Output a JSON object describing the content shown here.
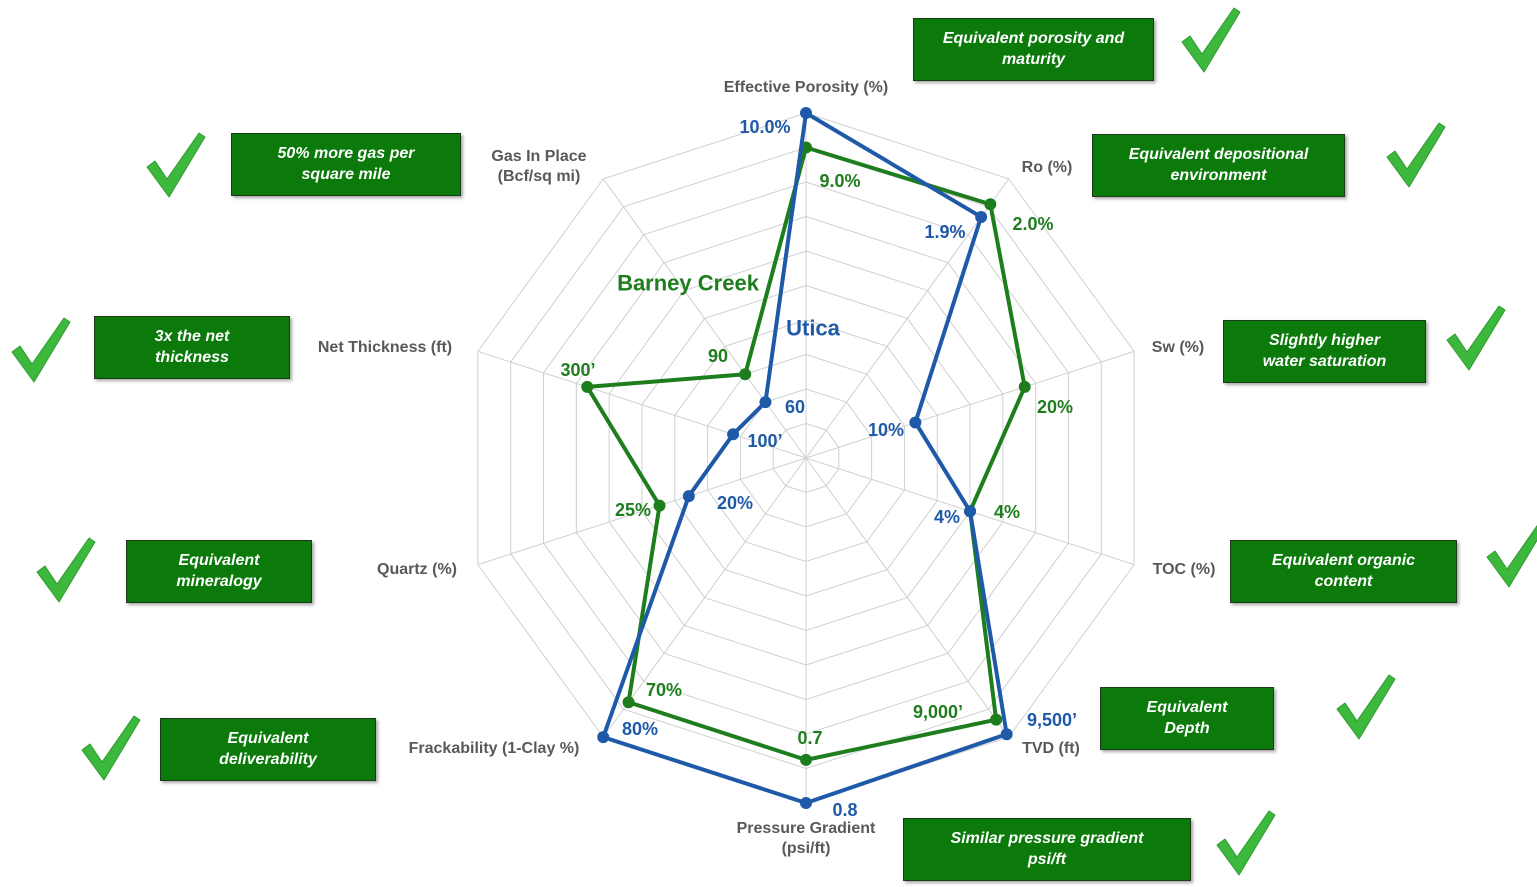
{
  "chart_data": {
    "type": "radar",
    "grid": true,
    "axes": [
      {
        "label": "Effective Porosity (%)",
        "lim": [
          0,
          10
        ]
      },
      {
        "label": "Ro (%)",
        "lim": [
          0,
          2.2
        ]
      },
      {
        "label": "Sw (%)",
        "lim": [
          0,
          30
        ]
      },
      {
        "label": "TOC (%)",
        "lim": [
          0,
          8
        ]
      },
      {
        "label": "TVD (ft)",
        "lim": [
          0,
          9600
        ]
      },
      {
        "label": "Pressure Gradient (psi/ft)",
        "lim": [
          0,
          0.8
        ]
      },
      {
        "label": "Frackability (1-Clay %)",
        "lim": [
          0,
          80
        ]
      },
      {
        "label": "Quartz (%)",
        "lim": [
          0,
          56
        ]
      },
      {
        "label": "Net Thickness (ft)",
        "lim": [
          0,
          450
        ]
      },
      {
        "label": "Gas In Place (Bcf/sq mi)",
        "lim": [
          0,
          300
        ]
      }
    ],
    "series": [
      {
        "name": "Utica",
        "color": "#1f5aa8",
        "values": [
          10.0,
          1.9,
          10,
          4,
          9500,
          0.8,
          80,
          20,
          100,
          60
        ],
        "value_labels": [
          "10.0%",
          "1.9%",
          "10%",
          "4%",
          "9,500’",
          "0.8",
          "80%",
          "20%",
          "100’",
          "60"
        ]
      },
      {
        "name": "Barney Creek",
        "color": "#1e7e1e",
        "values": [
          9.0,
          2.0,
          20,
          4,
          9000,
          0.7,
          70,
          25,
          300,
          90
        ],
        "value_labels": [
          "9.0%",
          "2.0%",
          "20%",
          "4%",
          "9,000’",
          "0.7",
          "70%",
          "25%",
          "300’",
          "90"
        ]
      }
    ],
    "annotations": [
      "Equivalent porosity and maturity",
      "Equivalent depositional environment",
      "Slightly higher water saturation",
      "Equivalent organic content",
      "Equivalent Depth",
      "Similar pressure gradient psi/ft",
      "50% more gas per square mile",
      "3x the net thickness",
      "Equivalent mineralogy",
      "Equivalent deliverability"
    ]
  }
}
